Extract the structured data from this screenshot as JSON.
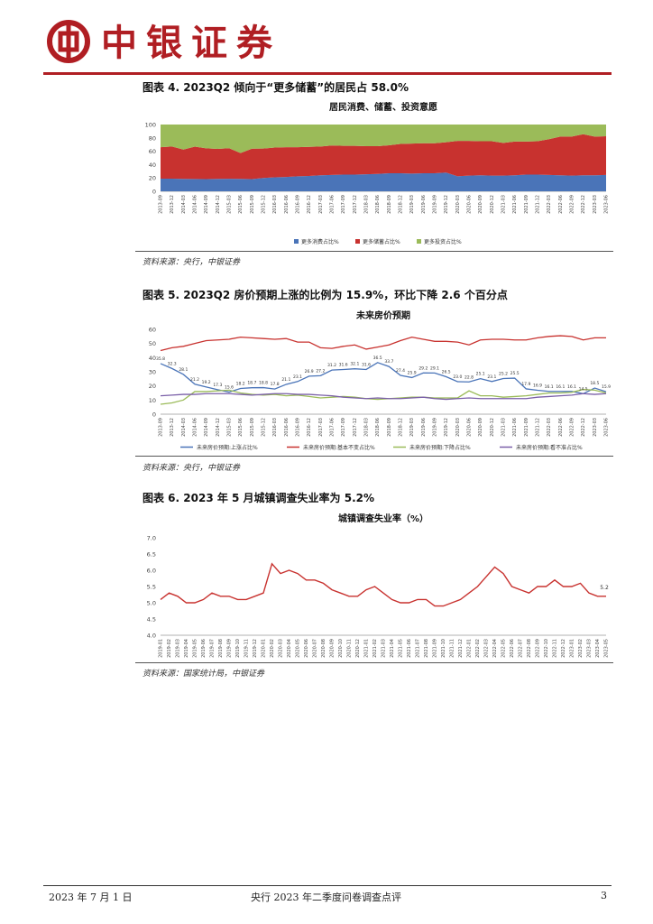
{
  "header": {
    "brand": "中银证券"
  },
  "colors": {
    "brand_red": "#b01e23",
    "blue": "#4a74b8",
    "red": "#c8322f",
    "green": "#9bbb59",
    "purple": "#7a5fa8"
  },
  "figures": [
    {
      "title": "图表 4. 2023Q2 倾向于“更多储蓄”的居民占 58.0%",
      "source": "资料来源：央行，中银证券",
      "chart_data": {
        "type": "area",
        "stacked": true,
        "title": "居民消费、储蓄、投资意愿",
        "ylim": [
          0,
          100
        ],
        "yticks": [
          0,
          20,
          40,
          60,
          80,
          100
        ],
        "x": [
          "2013-09",
          "2013-12",
          "2014-03",
          "2014-06",
          "2014-09",
          "2014-12",
          "2015-03",
          "2015-06",
          "2015-09",
          "2015-12",
          "2016-03",
          "2016-06",
          "2016-09",
          "2016-12",
          "2017-03",
          "2017-06",
          "2017-09",
          "2017-12",
          "2018-03",
          "2018-06",
          "2018-09",
          "2018-12",
          "2019-03",
          "2019-06",
          "2019-09",
          "2019-12",
          "2020-03",
          "2020-06",
          "2020-09",
          "2020-12",
          "2021-03",
          "2021-06",
          "2021-09",
          "2021-12",
          "2022-03",
          "2022-06",
          "2022-09",
          "2022-12",
          "2023-03",
          "2023-06"
        ],
        "xtick_labels": [
          "2013-09",
          "2013-12",
          "2014-03",
          "2014-06",
          "2014-09",
          "2014-12",
          "2015-03",
          "2015-06",
          "2015-09",
          "2015-12",
          "2016-03",
          "2016-06",
          "2016-09",
          "2016-12",
          "2017-03",
          "2017-06",
          "2017-09",
          "2017-12",
          "2018-03",
          "2018-06",
          "2018-09",
          "2018-12",
          "2019-03",
          "2019-06",
          "2019-09",
          "2019-12",
          "2020-03",
          "2020-06",
          "2020-09",
          "2020-12",
          "2021-03",
          "2021-06",
          "2021-09",
          "2021-12",
          "2022-03",
          "2022-06",
          "2022-09",
          "2022-12",
          "2023-03",
          "2023-06"
        ],
        "series": [
          {
            "name": "更多消费占比%",
            "color": "#4a74b8",
            "values": [
              19,
              19,
              18.5,
              18.4,
              18.3,
              18.5,
              18.8,
              18.6,
              18.3,
              20,
              21,
              21.5,
              22.5,
              23,
              24,
              24.5,
              25,
              25,
              25.5,
              26,
              27,
              27,
              26.5,
              27,
              27,
              28,
              22.5,
              23.5,
              24,
              23.5,
              23.5,
              24,
              25,
              25,
              24.5,
              24,
              23.5,
              24,
              24,
              24.5
            ]
          },
          {
            "name": "更多储蓄占比%",
            "color": "#c8322f",
            "values": [
              47,
              48,
              44,
              48.5,
              46,
              45,
              45.7,
              38.7,
              45.5,
              44,
              44.5,
              44.5,
              43.5,
              43.5,
              43,
              44,
              43,
              43,
              42,
              41.5,
              42,
              44,
              45,
              45,
              45,
              45.5,
              53,
              52,
              51,
              51.5,
              49,
              50.5,
              49.5,
              50,
              53.5,
              58,
              58.5,
              61.5,
              58,
              58
            ]
          },
          {
            "name": "更多投资占比%",
            "color": "#9bbb59",
            "values": [
              34,
              33,
              37.5,
              33.1,
              35.7,
              36.5,
              35.5,
              42.7,
              36.2,
              36,
              34.5,
              34,
              34,
              33.5,
              33,
              31.5,
              32,
              32,
              32.5,
              32.5,
              31,
              29,
              28.5,
              28,
              28,
              26.5,
              24.5,
              24.5,
              25,
              25,
              27.5,
              25.5,
              25.5,
              25,
              22,
              18,
              18,
              14.5,
              18,
              17.5
            ]
          }
        ]
      }
    },
    {
      "title": "图表 5. 2023Q2 房价预期上涨的比例为 15.9%，环比下降 2.6 个百分点",
      "source": "资料来源：央行，中银证券",
      "chart_data": {
        "type": "line",
        "title": "未来房价预期",
        "ylim": [
          0,
          60
        ],
        "yticks": [
          0,
          10,
          20,
          30,
          40,
          50,
          60
        ],
        "x": [
          "2013-09",
          "2013-12",
          "2014-03",
          "2014-06",
          "2014-09",
          "2014-12",
          "2015-03",
          "2015-06",
          "2015-09",
          "2015-12",
          "2016-03",
          "2016-06",
          "2016-09",
          "2016-12",
          "2017-03",
          "2017-06",
          "2017-09",
          "2017-12",
          "2018-03",
          "2018-06",
          "2018-09",
          "2018-12",
          "2019-03",
          "2019-06",
          "2019-09",
          "2019-12",
          "2020-03",
          "2020-06",
          "2020-09",
          "2020-12",
          "2021-03",
          "2021-06",
          "2021-09",
          "2021-12",
          "2022-03",
          "2022-06",
          "2022-09",
          "2022-12",
          "2023-03",
          "2023-06"
        ],
        "xtick_labels": [
          "2013-09",
          "2013-12",
          "2014-03",
          "2014-06",
          "2014-09",
          "2014-12",
          "2015-03",
          "2015-06",
          "2015-09",
          "2015-12",
          "2016-03",
          "2016-06",
          "2016-09",
          "2016-12",
          "2017-03",
          "2017-06",
          "2017-09",
          "2017-12",
          "2018-03",
          "2018-06",
          "2018-09",
          "2018-12",
          "2019-03",
          "2019-06",
          "2019-09",
          "2019-12",
          "2020-03",
          "2020-06",
          "2020-09",
          "2020-12",
          "2021-03",
          "2021-06",
          "2021-09",
          "2021-12",
          "2022-03",
          "2022-06",
          "2022-09",
          "2022-12",
          "2023-03",
          "2023-06"
        ],
        "series": [
          {
            "name": "未来房价预期:上涨占比%",
            "color": "#4a74b8",
            "values": [
              35.8,
              32.3,
              28.1,
              21.2,
              19.2,
              17.3,
              15.6,
              18.2,
              18.7,
              18.8,
              17.8,
              21.1,
              23.1,
              26.9,
              27.2,
              31.2,
              31.6,
              32.1,
              31.6,
              36.5,
              33.7,
              27.4,
              25.9,
              29.2,
              29.1,
              26.5,
              23.0,
              22.8,
              25.1,
              23.1,
              25.2,
              25.5,
              17.9,
              16.9,
              16.1,
              16.1,
              16.1,
              14.5,
              18.5,
              15.9
            ]
          },
          {
            "name": "未来房价预期:基本不变占比%",
            "color": "#c8322f",
            "values": [
              45,
              47,
              48,
              50,
              52,
              52.5,
              53,
              54.5,
              54,
              53.5,
              53,
              53.5,
              51,
              51,
              47,
              46.5,
              48,
              49,
              46,
              47.5,
              49,
              52,
              54.5,
              53,
              51.5,
              51.5,
              51,
              49,
              52.5,
              53,
              53,
              52.5,
              52.5,
              54,
              55,
              55.5,
              55,
              52.5,
              54,
              54
            ]
          },
          {
            "name": "未来房价预期:下降占比%",
            "color": "#9bbb59",
            "values": [
              7,
              8,
              10,
              16,
              16,
              16.5,
              17,
              15,
              14,
              13.5,
              14,
              13,
              13.5,
              12.5,
              11.5,
              12,
              12.5,
              12,
              11,
              10.5,
              11,
              11.5,
              12,
              12,
              11.5,
              11.5,
              11.5,
              16.5,
              13,
              13,
              12,
              12.5,
              13,
              14,
              15,
              15,
              15.5,
              17.5,
              17,
              15
            ]
          },
          {
            "name": "未来房价预期:看不准占比%",
            "color": "#7a5fa8",
            "values": [
              13,
              13.5,
              14,
              14,
              14.5,
              14.5,
              14.5,
              14,
              13.5,
              14,
              14.5,
              14.5,
              14,
              14,
              13.5,
              13,
              12,
              11.5,
              11,
              11.5,
              11,
              11,
              11.5,
              12,
              11,
              10.5,
              11,
              11.5,
              11,
              11,
              11,
              11,
              11,
              12,
              12.5,
              13,
              13.5,
              14.5,
              14,
              14.5
            ]
          }
        ],
        "data_labels": {
          "series": "未来房价预期:上涨占比%",
          "text": [
            "35.8",
            "32.3",
            "28.1",
            "21.2",
            "19.2",
            "17.3",
            "15.6",
            "18.2",
            "18.7",
            "18.8",
            "17.8",
            "21.1",
            "23.1",
            "26.9",
            "27.2",
            "31.2",
            "31.6",
            "32.1",
            "31.6",
            "36.5",
            "33.7",
            "27.4",
            "25.9",
            "29.2",
            "29.1",
            "26.5",
            "23.0",
            "22.8",
            "25.1",
            "23.1",
            "25.2",
            "25.5",
            "17.9",
            "16.9",
            "16.1",
            "16.1",
            "16.1",
            "14.5",
            "18.5",
            "15.9"
          ]
        }
      }
    },
    {
      "title": "图表 6. 2023 年 5 月城镇调查失业率为 5.2%",
      "source": "资料来源：国家统计局，中银证券",
      "chart_data": {
        "type": "line",
        "title": "城镇调查失业率（%）",
        "ylim": [
          4.0,
          7.0
        ],
        "yticks": [
          "4.0",
          "4.5",
          "5.0",
          "5.5",
          "6.0",
          "6.5",
          "7.0"
        ],
        "x": [
          "2019-01",
          "2019-02",
          "2019-03",
          "2019-04",
          "2019-05",
          "2019-06",
          "2019-07",
          "2019-08",
          "2019-09",
          "2019-10",
          "2019-11",
          "2019-12",
          "2020-01",
          "2020-02",
          "2020-03",
          "2020-04",
          "2020-05",
          "2020-06",
          "2020-07",
          "2020-08",
          "2020-09",
          "2020-10",
          "2020-11",
          "2020-12",
          "2021-01",
          "2021-02",
          "2021-03",
          "2021-04",
          "2021-05",
          "2021-06",
          "2021-07",
          "2021-08",
          "2021-09",
          "2021-10",
          "2021-11",
          "2021-12",
          "2022-01",
          "2022-02",
          "2022-03",
          "2022-04",
          "2022-05",
          "2022-06",
          "2022-07",
          "2022-08",
          "2022-09",
          "2022-10",
          "2022-11",
          "2022-12",
          "2023-01",
          "2023-02",
          "2023-03",
          "2023-04",
          "2023-05"
        ],
        "xtick_labels": [
          "2019-01",
          "2019-02",
          "2019-03",
          "2019-04",
          "2019-05",
          "2019-06",
          "2019-07",
          "2019-08",
          "2019-09",
          "2019-10",
          "2019-11",
          "2019-12",
          "2020-01",
          "2020-02",
          "2020-03",
          "2020-04",
          "2020-05",
          "2020-06",
          "2020-07",
          "2020-08",
          "2020-09",
          "2020-10",
          "2020-11",
          "2020-12",
          "2021-01",
          "2021-02",
          "2021-03",
          "2021-04",
          "2021-05",
          "2021-06",
          "2021-07",
          "2021-08",
          "2021-09",
          "2021-10",
          "2021-11",
          "2021-12",
          "2022-01",
          "2022-02",
          "2022-03",
          "2022-04",
          "2022-05",
          "2022-06",
          "2022-07",
          "2022-08",
          "2022-09",
          "2022-10",
          "2022-11",
          "2022-12",
          "2023-01",
          "2023-02",
          "2023-03",
          "2023-04",
          "2023-05"
        ],
        "series": [
          {
            "name": "城镇调查失业率",
            "color": "#c8322f",
            "values": [
              5.1,
              5.3,
              5.2,
              5.0,
              5.0,
              5.1,
              5.3,
              5.2,
              5.2,
              5.1,
              5.1,
              5.2,
              5.3,
              6.2,
              5.9,
              6.0,
              5.9,
              5.7,
              5.7,
              5.6,
              5.4,
              5.3,
              5.2,
              5.2,
              5.4,
              5.5,
              5.3,
              5.1,
              5.0,
              5.0,
              5.1,
              5.1,
              4.9,
              4.9,
              5.0,
              5.1,
              5.3,
              5.5,
              5.8,
              6.1,
              5.9,
              5.5,
              5.4,
              5.3,
              5.5,
              5.5,
              5.7,
              5.5,
              5.5,
              5.6,
              5.3,
              5.2,
              5.2
            ]
          }
        ],
        "end_label": "5.2"
      }
    }
  ],
  "footer": {
    "date": "2023 年 7 月 1 日",
    "doc_title": "央行 2023 年二季度问卷调查点评",
    "page": "3"
  }
}
